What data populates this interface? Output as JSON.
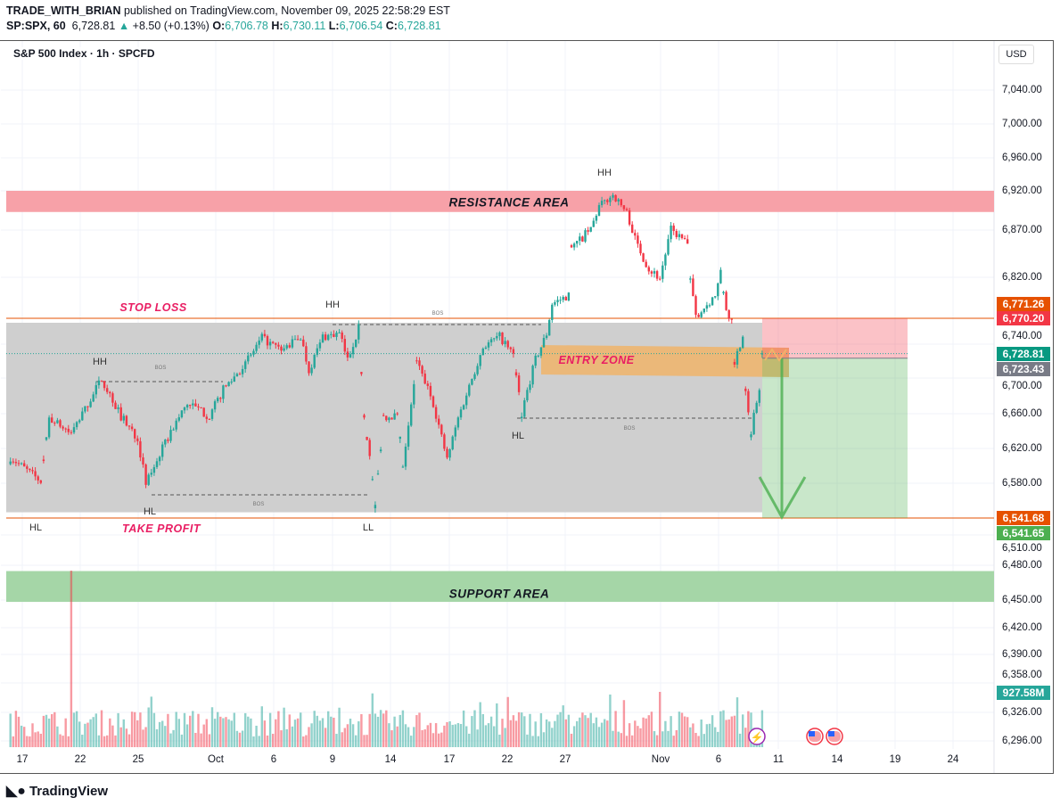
{
  "header": {
    "publisher": "TRADE_WITH_BRIAN",
    "published_text": "published on TradingView.com, November 09, 2025 22:58:29 EST",
    "symbol": "SP:SPX, 60",
    "last": "6,728.81",
    "change": "+8.50 (+0.13%)",
    "o_label": "O:",
    "o": "6,706.78",
    "h_label": "H:",
    "h": "6,730.11",
    "l_label": "L:",
    "l": "6,706.54",
    "c_label": "C:",
    "c": "6,728.81"
  },
  "chart_title": "S&P 500 Index · 1h · SPCFD",
  "currency": "USD",
  "colors": {
    "up": "#26a69a",
    "down": "#f23645",
    "resistance": "#f7a1a8",
    "support": "#a5d6a7",
    "range": "#cccccc",
    "entry": "#f0b46a",
    "stop_line": "#e65100"
  },
  "chart_data": {
    "type": "candlestick",
    "interval": "1h",
    "y_ticks": [
      "7,040.00",
      "7,000.00",
      "6,960.00",
      "6,920.00",
      "6,870.00",
      "6,820.00",
      "6,740.00",
      "6,700.00",
      "6,660.00",
      "6,620.00",
      "6,580.00",
      "6,510.00",
      "6,480.00",
      "6,450.00",
      "6,420.00",
      "6,390.00",
      "6,358.00",
      "6,326.00",
      "6,296.00"
    ],
    "x_ticks": [
      "17",
      "22",
      "25",
      "Oct",
      "6",
      "9",
      "14",
      "17",
      "22",
      "27",
      "Nov",
      "6",
      "11",
      "14",
      "19",
      "24"
    ],
    "price_path": [
      [
        "2025-09-16",
        10,
        6610
      ],
      [
        "2025-09-17",
        14,
        6582
      ],
      [
        "2025-09-18",
        10,
        6655
      ],
      [
        "2025-09-19",
        11,
        6637
      ],
      [
        "2025-09-22",
        15,
        6699
      ],
      [
        "2025-09-23",
        15,
        6657
      ],
      [
        "2025-09-24",
        14,
        6632
      ],
      [
        "2025-09-25",
        10,
        6579
      ],
      [
        "2025-09-25",
        14,
        6607
      ],
      [
        "2025-09-26",
        13,
        6645
      ],
      [
        "2025-09-29",
        11,
        6672
      ],
      [
        "2025-09-30",
        12,
        6657
      ],
      [
        "2025-10-01",
        10,
        6687
      ],
      [
        "2025-10-02",
        11,
        6717
      ],
      [
        "2025-10-03",
        10,
        6747
      ],
      [
        "2025-10-06",
        10,
        6732
      ],
      [
        "2025-10-07",
        10,
        6749
      ],
      [
        "2025-10-07",
        13,
        6709
      ],
      [
        "2025-10-08",
        11,
        6749
      ],
      [
        "2025-10-09",
        10,
        6752
      ],
      [
        "2025-10-09",
        13,
        6722
      ],
      [
        "2025-10-10",
        10,
        6759
      ],
      [
        "2025-10-10",
        12,
        6655
      ],
      [
        "2025-10-10",
        14,
        6610
      ],
      [
        "2025-10-10",
        16,
        6555
      ],
      [
        "2025-10-13",
        12,
        6657
      ],
      [
        "2025-10-14",
        10,
        6657
      ],
      [
        "2025-10-14",
        12,
        6602
      ],
      [
        "2025-10-15",
        10,
        6719
      ],
      [
        "2025-10-15",
        16,
        6672
      ],
      [
        "2025-10-16",
        14,
        6607
      ],
      [
        "2025-10-17",
        11,
        6655
      ],
      [
        "2025-10-20",
        10,
        6709
      ],
      [
        "2025-10-20",
        13,
        6737
      ],
      [
        "2025-10-21",
        12,
        6749
      ],
      [
        "2025-10-22",
        10,
        6727
      ],
      [
        "2025-10-22",
        13,
        6661
      ],
      [
        "2025-10-23",
        11,
        6722
      ],
      [
        "2025-10-23",
        15,
        6752
      ],
      [
        "2025-10-24",
        10,
        6788
      ],
      [
        "2025-10-24",
        16,
        6798
      ],
      [
        "2025-10-27",
        10,
        6850
      ],
      [
        "2025-10-28",
        10,
        6871
      ],
      [
        "2025-10-28",
        13,
        6900
      ],
      [
        "2025-10-29",
        11,
        6915
      ],
      [
        "2025-10-29",
        16,
        6892
      ],
      [
        "2025-10-30",
        12,
        6860
      ],
      [
        "2025-10-31",
        10,
        6829
      ],
      [
        "2025-10-31",
        14,
        6819
      ],
      [
        "2025-11-03",
        11,
        6871
      ],
      [
        "2025-11-04",
        10,
        6855
      ],
      [
        "2025-11-04",
        11,
        6814
      ],
      [
        "2025-11-04",
        13,
        6772
      ],
      [
        "2025-11-05",
        13,
        6798
      ],
      [
        "2025-11-05",
        15,
        6824
      ],
      [
        "2025-11-06",
        10,
        6782
      ],
      [
        "2025-11-06",
        12,
        6767
      ],
      [
        "2025-11-06",
        13,
        6720
      ],
      [
        "2025-11-06",
        16,
        6750
      ],
      [
        "2025-11-07",
        10,
        6690
      ],
      [
        "2025-11-07",
        12,
        6640
      ],
      [
        "2025-11-07",
        15,
        6690
      ],
      [
        "2025-11-07",
        16,
        6729
      ]
    ],
    "zones": {
      "resistance": [
        6893,
        6920
      ],
      "support": [
        6448,
        6475
      ],
      "range": [
        6548,
        6765
      ],
      "stop_loss": 6770.2,
      "take_profit": 6541.68,
      "entry": 6723.43
    },
    "price_labels": [
      {
        "text": "6,771.26",
        "color": "#e65100",
        "price": 6771.26
      },
      {
        "text": "6,770.20",
        "color": "#f23645",
        "price": 6770.2
      },
      {
        "text": "6,728.81",
        "color": "#089981",
        "price": 6728.81
      },
      {
        "text": "6,723.43",
        "color": "#787b86",
        "price": 6723.43
      },
      {
        "text": "6,541.68",
        "color": "#e65100",
        "price": 6541.68
      },
      {
        "text": "6,541.65",
        "color": "#4caf50",
        "price": 6541.65
      }
    ],
    "volume_label": "927.58M"
  },
  "annotations": {
    "resistance": "RESISTANCE AREA",
    "support": "SUPPORT AREA",
    "stop_loss": "STOP LOSS",
    "take_profit": "TAKE PROFIT",
    "entry": "ENTRY ZONE",
    "swings": [
      "HH",
      "HL",
      "HL",
      "HH",
      "LL",
      "HL",
      "HH",
      "HL"
    ],
    "bos": "BOS"
  },
  "footer": {
    "brand": "TradingView"
  }
}
